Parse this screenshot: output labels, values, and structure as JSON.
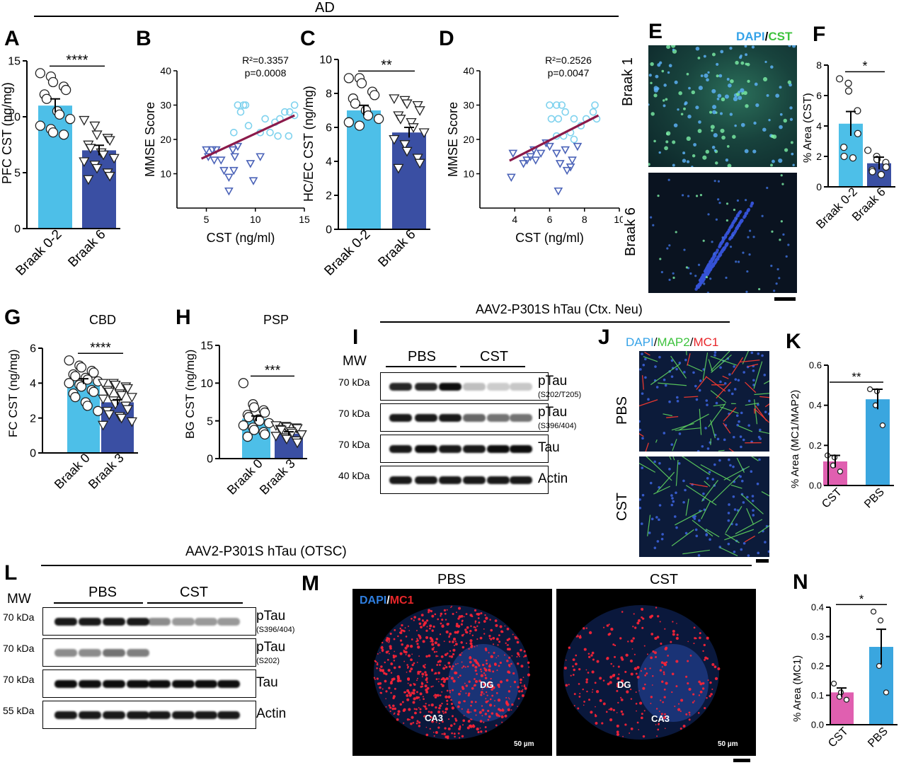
{
  "header": {
    "ad": "AD",
    "aav_neu": "AAV2-P301S hTau (Ctx. Neu)",
    "aav_otsc": "AAV2-P301S hTau (OTSC)"
  },
  "labels": {
    "A": "A",
    "B": "B",
    "C": "C",
    "D": "D",
    "E": "E",
    "F": "F",
    "G": "G",
    "H": "H",
    "I": "I",
    "J": "J",
    "K": "K",
    "L": "L",
    "M": "M",
    "N": "N"
  },
  "colors": {
    "light_blue": "#4dbfe8",
    "dark_blue": "#3a4fa3",
    "pink": "#e05fb0",
    "mid_blue": "#3aa6df",
    "regline": "#8b1a4a",
    "circle_pts": "#7fd2ee",
    "tri_pts": "#4b63b8"
  },
  "micrographs": {
    "E": {
      "legend_dapi": "DAPI",
      "legend_slash": "/",
      "legend_cst": "CST",
      "row1": "Braak 1",
      "row2": "Braak 6"
    },
    "J": {
      "legend_dapi": "DAPI",
      "legend_map2": "MAP2",
      "legend_mc1": "MC1",
      "s1": "/",
      "s2": "/",
      "row1": "PBS",
      "row2": "CST"
    },
    "M": {
      "legend_dapi": "DAPI",
      "legend_slash": "/",
      "legend_mc1": "MC1",
      "col1": "PBS",
      "col2": "CST",
      "dg": "DG",
      "ca3": "CA3",
      "scale": "50 µm"
    }
  },
  "blots": {
    "I": {
      "mw": "MW",
      "group1": "PBS",
      "group2": "CST",
      "rows": [
        {
          "kda": "70 kDa",
          "name": "pTau",
          "sub": "(S202/T205)"
        },
        {
          "kda": "70 kDa",
          "name": "pTau",
          "sub": "(S396/404)"
        },
        {
          "kda": "70 kDa",
          "name": "Tau",
          "sub": ""
        },
        {
          "kda": "40 kDa",
          "name": "Actin",
          "sub": ""
        }
      ]
    },
    "L": {
      "mw": "MW",
      "group1": "PBS",
      "group2": "CST",
      "rows": [
        {
          "kda": "70 kDa",
          "name": "pTau",
          "sub": "(S396/404)"
        },
        {
          "kda": "70 kDa",
          "name": "pTau",
          "sub": "(S202)"
        },
        {
          "kda": "70 kDa",
          "name": "Tau",
          "sub": ""
        },
        {
          "kda": "55 kDa",
          "name": "Actin",
          "sub": ""
        }
      ]
    }
  },
  "chart_data": [
    {
      "id": "A",
      "type": "bar",
      "title": "",
      "ylabel": "PFC CST (ng/mg)",
      "categories": [
        "Braak 0-2",
        "Braak 6"
      ],
      "values": [
        11.0,
        7.0
      ],
      "errors": [
        0.6,
        0.45
      ],
      "ylim": [
        0,
        15
      ],
      "yticks": [
        "0",
        "5",
        "10",
        "15"
      ],
      "significance": "****",
      "points": [
        [
          13.9,
          13.6,
          13.1,
          12.7,
          12.4,
          12.0,
          11.6,
          10.5,
          10.2,
          9.8,
          9.2,
          8.9,
          8.6,
          8.4
        ],
        [
          9.7,
          9.2,
          8.4,
          8.1,
          7.9,
          7.5,
          7.2,
          6.8,
          6.6,
          6.3,
          6.0,
          5.7,
          5.4,
          5.0,
          4.7,
          4.4
        ]
      ]
    },
    {
      "id": "B",
      "type": "scatter",
      "title": "",
      "xlabel": "CST (ng/ml)",
      "ylabel": "MMSE Score",
      "xlim": [
        2,
        15
      ],
      "ylim": [
        0,
        40
      ],
      "xticks": [
        "5",
        "10",
        "15"
      ],
      "yticks": [
        "10",
        "20",
        "30",
        "40"
      ],
      "r2": "R²=0.3357",
      "p": "p=0.0008",
      "series": [
        {
          "marker": "circle",
          "points": [
            [
              8.2,
              30
            ],
            [
              8.8,
              30
            ],
            [
              9.0,
              30
            ],
            [
              8.5,
              28
            ],
            [
              7.8,
              22
            ],
            [
              9.3,
              24
            ],
            [
              10.5,
              22
            ],
            [
              11.0,
              26
            ],
            [
              11.5,
              22
            ],
            [
              12.0,
              25
            ],
            [
              12.5,
              26
            ],
            [
              13.0,
              28
            ],
            [
              12.3,
              21
            ],
            [
              13.5,
              28
            ],
            [
              14.0,
              30
            ],
            [
              14.0,
              27
            ],
            [
              13.4,
              21
            ]
          ]
        },
        {
          "marker": "triangle",
          "points": [
            [
              5.0,
              17
            ],
            [
              5.6,
              17
            ],
            [
              5.2,
              15
            ],
            [
              6.0,
              17
            ],
            [
              5.8,
              14
            ],
            [
              6.5,
              14
            ],
            [
              6.8,
              11
            ],
            [
              7.3,
              9
            ],
            [
              7.8,
              11
            ],
            [
              7.9,
              15
            ],
            [
              8.2,
              18
            ],
            [
              7.3,
              5
            ],
            [
              9.8,
              8
            ],
            [
              9.5,
              13
            ],
            [
              7.7,
              17
            ],
            [
              10.5,
              15
            ]
          ]
        }
      ],
      "fit": {
        "x": [
          4.5,
          14
        ],
        "y": [
          14.4,
          27.0
        ]
      }
    },
    {
      "id": "C",
      "type": "bar",
      "title": "",
      "ylabel": "HC/EC CST (ng/mg)",
      "categories": [
        "Braak 0-2",
        "Braak 6"
      ],
      "values": [
        7.0,
        5.7
      ],
      "errors": [
        0.3,
        0.3
      ],
      "ylim": [
        0,
        10
      ],
      "yticks": [
        "0",
        "2",
        "4",
        "6",
        "8",
        "10"
      ],
      "significance": "**",
      "points": [
        [
          8.9,
          8.9,
          8.6,
          8.1,
          7.9,
          7.7,
          7.4,
          7.0,
          6.7,
          6.5,
          6.3,
          6.1
        ],
        [
          7.7,
          7.6,
          7.4,
          7.3,
          7.0,
          6.7,
          6.5,
          6.3,
          6.0,
          5.7,
          5.3,
          5.0,
          4.6,
          4.2,
          3.9,
          3.6
        ]
      ]
    },
    {
      "id": "D",
      "type": "scatter",
      "title": "",
      "xlabel": "CST (ng/ml)",
      "ylabel": "MMSE Score",
      "xlim": [
        2,
        10
      ],
      "ylim": [
        0,
        40
      ],
      "xticks": [
        "4",
        "6",
        "8",
        "10"
      ],
      "yticks": [
        "10",
        "20",
        "30",
        "40"
      ],
      "r2": "R²=0.2526",
      "p": "p=0.0047",
      "series": [
        {
          "marker": "circle",
          "points": [
            [
              6.0,
              30
            ],
            [
              6.4,
              30
            ],
            [
              6.7,
              30
            ],
            [
              6.9,
              28
            ],
            [
              6.1,
              26
            ],
            [
              6.5,
              26
            ],
            [
              7.4,
              26
            ],
            [
              7.2,
              22
            ],
            [
              6.4,
              21
            ],
            [
              7.8,
              24
            ],
            [
              8.1,
              26
            ],
            [
              8.5,
              28
            ],
            [
              8.6,
              30
            ],
            [
              8.7,
              26
            ],
            [
              7.4,
              20
            ],
            [
              6.8,
              21
            ]
          ]
        },
        {
          "marker": "triangle",
          "points": [
            [
              3.8,
              9
            ],
            [
              3.9,
              16
            ],
            [
              4.5,
              13
            ],
            [
              4.7,
              14
            ],
            [
              4.9,
              15
            ],
            [
              5.1,
              17
            ],
            [
              5.2,
              14
            ],
            [
              5.5,
              16
            ],
            [
              5.8,
              19
            ],
            [
              6.0,
              18
            ],
            [
              6.4,
              16
            ],
            [
              6.6,
              13
            ],
            [
              6.5,
              5
            ],
            [
              7.0,
              11
            ],
            [
              7.2,
              12
            ],
            [
              6.9,
              17
            ],
            [
              7.3,
              14
            ],
            [
              7.6,
              18
            ]
          ]
        }
      ],
      "fit": {
        "x": [
          3.7,
          8.8
        ],
        "y": [
          13.8,
          27.0
        ]
      }
    },
    {
      "id": "F",
      "type": "bar",
      "title": "",
      "ylabel": "% Area (CST)",
      "categories": [
        "Braak 0-2",
        "Braak 6"
      ],
      "values": [
        4.15,
        1.55
      ],
      "errors": [
        0.8,
        0.4
      ],
      "ylim": [
        0,
        8
      ],
      "yticks": [
        "0",
        "2",
        "4",
        "6",
        "8"
      ],
      "significance": "*",
      "points": [
        [
          7.1,
          6.8,
          6.3,
          5.0,
          3.5,
          2.6,
          2.0,
          1.9
        ],
        [
          2.4,
          2.0,
          1.8,
          1.6,
          1.3,
          1.1,
          1.0,
          0.8
        ]
      ]
    },
    {
      "id": "G",
      "type": "bar",
      "title": "CBD",
      "ylabel": "FC CST (ng/mg)",
      "categories": [
        "Braak 0",
        "Braak 3"
      ],
      "values": [
        4.1,
        2.9
      ],
      "errors": [
        0.15,
        0.15
      ],
      "ylim": [
        0,
        6
      ],
      "yticks": [
        "0",
        "2",
        "4",
        "6"
      ],
      "significance": "****",
      "points": [
        [
          5.3,
          5.0,
          4.9,
          4.7,
          4.6,
          4.5,
          4.4,
          4.3,
          4.2,
          4.1,
          4.0,
          3.9,
          3.8,
          3.6,
          3.5,
          3.4,
          3.2,
          2.9,
          2.7,
          2.4
        ],
        [
          4.0,
          4.0,
          3.9,
          3.8,
          3.7,
          3.6,
          3.5,
          3.4,
          3.3,
          3.2,
          3.1,
          3.0,
          2.8,
          2.7,
          2.5,
          2.4,
          2.2,
          2.1,
          2.0,
          1.8,
          1.6
        ]
      ]
    },
    {
      "id": "H",
      "type": "bar",
      "title": "PSP",
      "ylabel": "BG CST (ng/mg)",
      "categories": [
        "Braak 0",
        "Braak 3"
      ],
      "values": [
        5.3,
        3.3
      ],
      "errors": [
        0.35,
        0.25
      ],
      "ylim": [
        0,
        15
      ],
      "yticks": [
        "0",
        "5",
        "10",
        "15"
      ],
      "significance": "***",
      "points": [
        [
          10.0,
          7.2,
          6.8,
          6.4,
          6.1,
          5.8,
          5.5,
          5.2,
          5.0,
          4.7,
          4.4,
          4.1,
          3.8,
          3.5,
          3.2,
          2.9
        ],
        [
          4.4,
          4.3,
          4.2,
          4.1,
          4.0,
          3.9,
          3.8,
          3.6,
          3.4,
          3.2,
          3.0,
          2.8,
          2.6,
          2.4,
          2.1
        ]
      ]
    },
    {
      "id": "K",
      "type": "bar",
      "title": "",
      "ylabel": "% Area (MC1/MAP2)",
      "categories": [
        "CST",
        "PBS"
      ],
      "values": [
        0.12,
        0.43
      ],
      "errors": [
        0.03,
        0.05
      ],
      "ylim": [
        0,
        0.6
      ],
      "yticks": [
        "0.0",
        "0.2",
        "0.4",
        "0.6"
      ],
      "significance": "**",
      "points": [
        [
          0.15,
          0.14,
          0.1,
          0.07
        ],
        [
          0.48,
          0.47,
          0.4,
          0.3
        ]
      ]
    },
    {
      "id": "N",
      "type": "bar",
      "title": "",
      "ylabel": "% Area (MC1)",
      "categories": [
        "CST",
        "PBS"
      ],
      "values": [
        0.11,
        0.265
      ],
      "errors": [
        0.015,
        0.06
      ],
      "ylim": [
        0,
        0.4
      ],
      "yticks": [
        "0.0",
        "0.1",
        "0.2",
        "0.3",
        "0.4"
      ],
      "significance": "*",
      "points": [
        [
          0.14,
          0.11,
          0.095,
          0.085
        ],
        [
          0.385,
          0.355,
          0.2,
          0.11
        ]
      ]
    }
  ]
}
